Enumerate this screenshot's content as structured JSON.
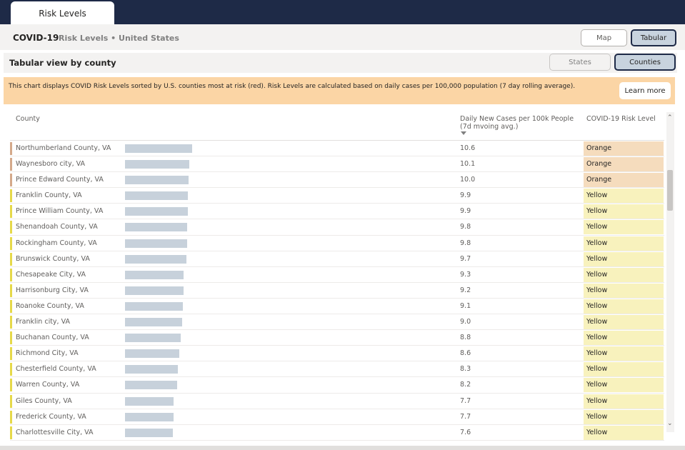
{
  "tabs": [
    {
      "label": "Risk Levels",
      "active": true
    }
  ],
  "header": {
    "title": "COVID-19",
    "subtitle": "Risk Levels • United States",
    "view_buttons": {
      "map": "Map",
      "tabular": "Tabular",
      "selected": "Tabular"
    }
  },
  "section": {
    "title": "Tabular view by county",
    "level_buttons": {
      "states": "States",
      "counties": "Counties",
      "selected": "Counties"
    }
  },
  "banner": {
    "text": "This chart displays COVID Risk Levels sorted by U.S. counties most at risk (red). Risk Levels are calculated based on daily cases per 100,000 population (7 day rolling average).",
    "learn_more": "Learn more",
    "color": "#fbd5a5"
  },
  "table": {
    "columns": {
      "county": "County",
      "cases": "Daily New Cases per 100k People (7d mvoing avg.)",
      "risk": "COVID-19 Risk Level"
    },
    "sort": {
      "column": "cases",
      "direction": "descending"
    },
    "risk_colors": {
      "Orange": {
        "accent": "#d4a98a",
        "fill": "#f5dcbd"
      },
      "Yellow": {
        "accent": "#e6d94a",
        "fill": "#f8f2bd"
      }
    },
    "bar_color": "#c7d1db",
    "rows": [
      {
        "county": "Northumberland County, VA",
        "value": "10.6",
        "risk": "Orange"
      },
      {
        "county": "Waynesboro city, VA",
        "value": "10.1",
        "risk": "Orange"
      },
      {
        "county": "Prince Edward County, VA",
        "value": "10.0",
        "risk": "Orange"
      },
      {
        "county": "Franklin County, VA",
        "value": "9.9",
        "risk": "Yellow"
      },
      {
        "county": "Prince William County, VA",
        "value": "9.9",
        "risk": "Yellow"
      },
      {
        "county": "Shenandoah County, VA",
        "value": "9.8",
        "risk": "Yellow"
      },
      {
        "county": "Rockingham County, VA",
        "value": "9.8",
        "risk": "Yellow"
      },
      {
        "county": "Brunswick County, VA",
        "value": "9.7",
        "risk": "Yellow"
      },
      {
        "county": "Chesapeake City, VA",
        "value": "9.3",
        "risk": "Yellow"
      },
      {
        "county": "Harrisonburg City, VA",
        "value": "9.2",
        "risk": "Yellow"
      },
      {
        "county": "Roanoke County, VA",
        "value": "9.1",
        "risk": "Yellow"
      },
      {
        "county": "Franklin city, VA",
        "value": "9.0",
        "risk": "Yellow"
      },
      {
        "county": "Buchanan County, VA",
        "value": "8.8",
        "risk": "Yellow"
      },
      {
        "county": "Richmond City, VA",
        "value": "8.6",
        "risk": "Yellow"
      },
      {
        "county": "Chesterfield County, VA",
        "value": "8.3",
        "risk": "Yellow"
      },
      {
        "county": "Warren County, VA",
        "value": "8.2",
        "risk": "Yellow"
      },
      {
        "county": "Giles County, VA",
        "value": "7.7",
        "risk": "Yellow"
      },
      {
        "county": "Frederick County, VA",
        "value": "7.7",
        "risk": "Yellow"
      },
      {
        "county": "Charlottesville City, VA",
        "value": "7.6",
        "risk": "Yellow"
      }
    ]
  },
  "colors": {
    "nav": "#1e2a47",
    "selected_button": "#c8d3de"
  },
  "icons": {
    "scroll_up": "chevron-up-icon",
    "scroll_down": "chevron-down-icon",
    "sort": "sort-desc-icon"
  }
}
